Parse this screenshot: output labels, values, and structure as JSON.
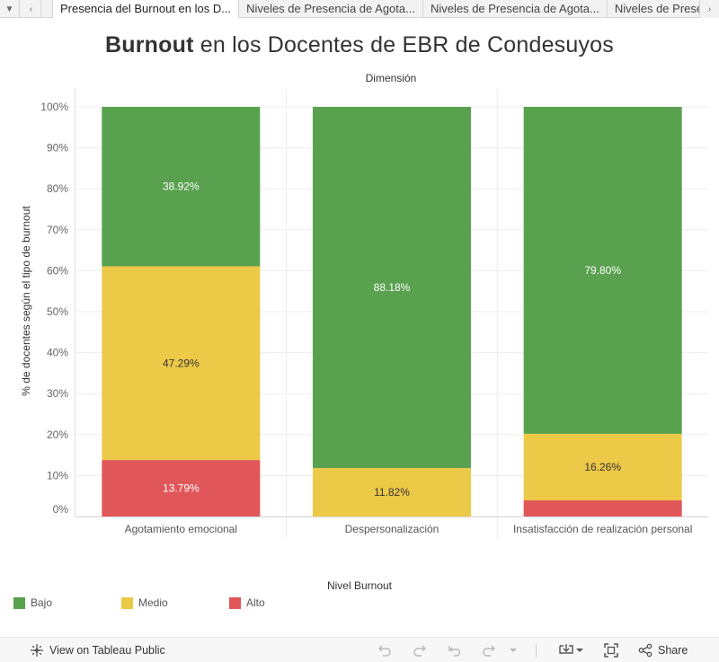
{
  "tabs": [
    {
      "label": "Presencia del Burnout en los D..."
    },
    {
      "label": "Niveles de Presencia de Agota..."
    },
    {
      "label": "Niveles de Presencia de Agota..."
    },
    {
      "label": "Niveles de Presencia de Agota..."
    }
  ],
  "title": {
    "bold": "Burnout",
    "rest": " en los Docentes de EBR de Condesuyos"
  },
  "chart_data": {
    "type": "bar",
    "stacked": true,
    "header": "Dimensión",
    "ylabel": "% de docentes según el tipo de burnout",
    "xlabel": "",
    "ylim": [
      0,
      100
    ],
    "yticks": [
      "0%",
      "10%",
      "20%",
      "30%",
      "40%",
      "50%",
      "60%",
      "70%",
      "80%",
      "90%",
      "100%"
    ],
    "grid": true,
    "categories": [
      "Agotamiento emocional",
      "Despersonalización",
      "Insatisfacción de realización personal"
    ],
    "series": [
      {
        "name": "Alto",
        "color": "#e15759",
        "values": [
          13.79,
          0,
          3.94
        ],
        "labels": [
          "13.79%",
          "",
          ""
        ],
        "label_color": "#ffffff"
      },
      {
        "name": "Medio",
        "color": "#edc948",
        "values": [
          47.29,
          11.82,
          16.26
        ],
        "labels": [
          "47.29%",
          "11.82%",
          "16.26%"
        ],
        "label_color": "#333333"
      },
      {
        "name": "Bajo",
        "color": "#59a14f",
        "values": [
          38.92,
          88.18,
          79.8
        ],
        "labels": [
          "38.92%",
          "88.18%",
          "79.80%"
        ],
        "label_color": "#ffffff"
      }
    ]
  },
  "legend": {
    "title": "Nivel Burnout",
    "items": [
      {
        "label": "Bajo",
        "color": "#59a14f"
      },
      {
        "label": "Medio",
        "color": "#edc948"
      },
      {
        "label": "Alto",
        "color": "#e15759"
      }
    ]
  },
  "footer": {
    "view_link": "View on Tableau Public",
    "share_label": "Share",
    "icons": [
      "tableau-logo-icon",
      "undo-icon",
      "redo-icon",
      "revert-icon",
      "refresh-icon",
      "pause-icon",
      "download-icon",
      "fullscreen-icon",
      "share-icon"
    ]
  }
}
